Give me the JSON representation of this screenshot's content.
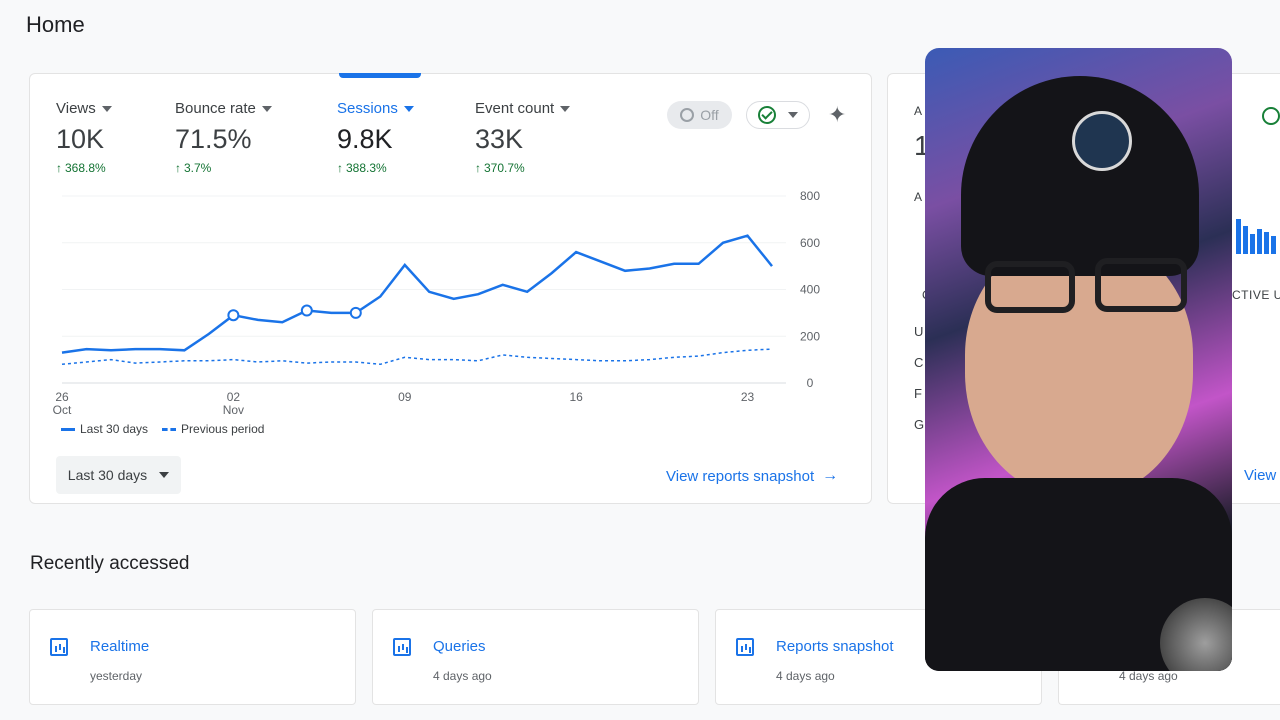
{
  "page": {
    "title": "Home"
  },
  "metrics": [
    {
      "label": "Views",
      "value": "10K",
      "change": "368.8%",
      "selected": false
    },
    {
      "label": "Bounce rate",
      "value": "71.5%",
      "change": "3.7%",
      "selected": false
    },
    {
      "label": "Sessions",
      "value": "9.8K",
      "change": "388.3%",
      "selected": true
    },
    {
      "label": "Event count",
      "value": "33K",
      "change": "370.7%",
      "selected": false
    }
  ],
  "toolbar": {
    "off_label": "Off"
  },
  "colors": {
    "accent": "#1a73e8",
    "positive": "#137333",
    "check": "#188038"
  },
  "chart_data": {
    "type": "line",
    "x": [
      "Oct 26",
      "Oct 27",
      "Oct 28",
      "Oct 29",
      "Oct 30",
      "Oct 31",
      "Nov 01",
      "Nov 02",
      "Nov 03",
      "Nov 04",
      "Nov 05",
      "Nov 06",
      "Nov 07",
      "Nov 08",
      "Nov 09",
      "Nov 10",
      "Nov 11",
      "Nov 12",
      "Nov 13",
      "Nov 14",
      "Nov 15",
      "Nov 16",
      "Nov 17",
      "Nov 18",
      "Nov 19",
      "Nov 20",
      "Nov 21",
      "Nov 22",
      "Nov 23",
      "Nov 24"
    ],
    "series": [
      {
        "name": "Last 30 days",
        "style": "solid",
        "values": [
          130,
          145,
          140,
          145,
          145,
          140,
          210,
          290,
          270,
          260,
          310,
          300,
          300,
          370,
          505,
          390,
          360,
          380,
          420,
          390,
          470,
          560,
          520,
          480,
          490,
          510,
          510,
          600,
          630,
          500
        ]
      },
      {
        "name": "Previous period",
        "style": "dashed",
        "values": [
          80,
          90,
          100,
          85,
          90,
          95,
          95,
          100,
          90,
          95,
          85,
          90,
          90,
          80,
          110,
          100,
          100,
          95,
          120,
          110,
          105,
          100,
          95,
          95,
          100,
          110,
          115,
          130,
          140,
          145
        ]
      }
    ],
    "markers": [
      7,
      10,
      12
    ],
    "x_tick_labels": [
      {
        "index": 0,
        "day": "26",
        "month": "Oct"
      },
      {
        "index": 7,
        "day": "02",
        "month": "Nov"
      },
      {
        "index": 14,
        "day": "09",
        "month": ""
      },
      {
        "index": 21,
        "day": "16",
        "month": ""
      },
      {
        "index": 28,
        "day": "23",
        "month": ""
      }
    ],
    "y_ticks": [
      0,
      200,
      400,
      600,
      800
    ],
    "ylim": [
      0,
      800
    ],
    "grid": true,
    "legend": "bottom-left"
  },
  "legend": {
    "current": "Last 30 days",
    "previous": "Previous period"
  },
  "date_range": {
    "label": "Last 30 days"
  },
  "links": {
    "view_snapshot": "View reports snapshot"
  },
  "side_card": {
    "header_fragment": "A",
    "value_fragment": "1",
    "sub_fragment": "A",
    "column_fragment": "CTIVE U",
    "col_c": "C",
    "row_labels": [
      "U",
      "C",
      "F",
      "G"
    ],
    "link_fragment": "View",
    "bars": [
      35,
      28,
      20,
      25,
      22,
      18
    ]
  },
  "recent": {
    "title": "Recently accessed",
    "items": [
      {
        "title": "Realtime",
        "time": "yesterday"
      },
      {
        "title": "Queries",
        "time": "4 days ago"
      },
      {
        "title": "Reports snapshot",
        "time": "4 days ago"
      },
      {
        "title": "",
        "time": "4 days ago"
      }
    ]
  }
}
